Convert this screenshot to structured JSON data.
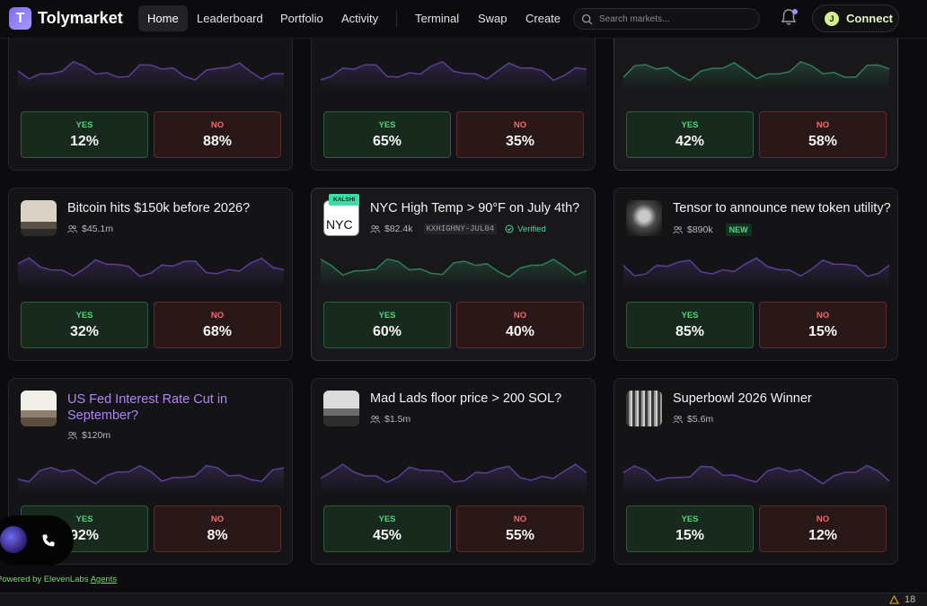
{
  "nav": {
    "logo_letter": "T",
    "brand": "Tolymarket",
    "items": [
      "Home",
      "Leaderboard",
      "Portfolio",
      "Activity",
      "Terminal",
      "Swap",
      "Create"
    ],
    "search_placeholder": "Search markets...",
    "connect_avatar": "J",
    "connect_label": "Connect"
  },
  "labels": {
    "yes": "YES",
    "no": "NO"
  },
  "markets": [
    {
      "title": "",
      "volume": "",
      "yes": "12%",
      "no": "88%",
      "spark_color": "#5b3f94"
    },
    {
      "title": "",
      "volume": "",
      "yes": "65%",
      "no": "35%",
      "spark_color": "#5b3f94"
    },
    {
      "title": "",
      "volume": "",
      "yes": "42%",
      "no": "58%",
      "spark_color": "#2f7d5a"
    },
    {
      "title": "Bitcoin hits $150k before 2026?",
      "volume": "$45.1m",
      "yes": "32%",
      "no": "68%",
      "spark_color": "#5b3f94"
    },
    {
      "title": "NYC High Temp > 90°F on July 4th?",
      "volume": "$82.4k",
      "badge": "KALSHI",
      "thumb_text": "NYC",
      "ticker": "KXHIGHNY-JUL04",
      "verified": "Verified",
      "yes": "60%",
      "no": "40%",
      "spark_color": "#2f7d5a"
    },
    {
      "title": "Tensor to announce new token utility?",
      "volume": "$890k",
      "new_badge": "NEW",
      "yes": "85%",
      "no": "15%",
      "spark_color": "#5b3f94"
    },
    {
      "title": "US Fed Interest Rate Cut in September?",
      "volume": "$120m",
      "yes": "92%",
      "no": "8%",
      "spark_color": "#5b3f94"
    },
    {
      "title": "Mad Lads floor price > 200 SOL?",
      "volume": "$1.5m",
      "yes": "45%",
      "no": "55%",
      "spark_color": "#5b3f94"
    },
    {
      "title": "Superbowl 2026 Winner",
      "volume": "$5.6m",
      "yes": "15%",
      "no": "12%",
      "spark_color": "#5b3f94"
    }
  ],
  "footer": {
    "powered_prefix": "Powered by ElevenLabs",
    "powered_link": "Agents",
    "alert_count": "18"
  },
  "colors": {
    "accent": "#7c6cf2",
    "yes": "#4fd477",
    "no": "#f06c6c",
    "connect": "#d6f08f"
  }
}
